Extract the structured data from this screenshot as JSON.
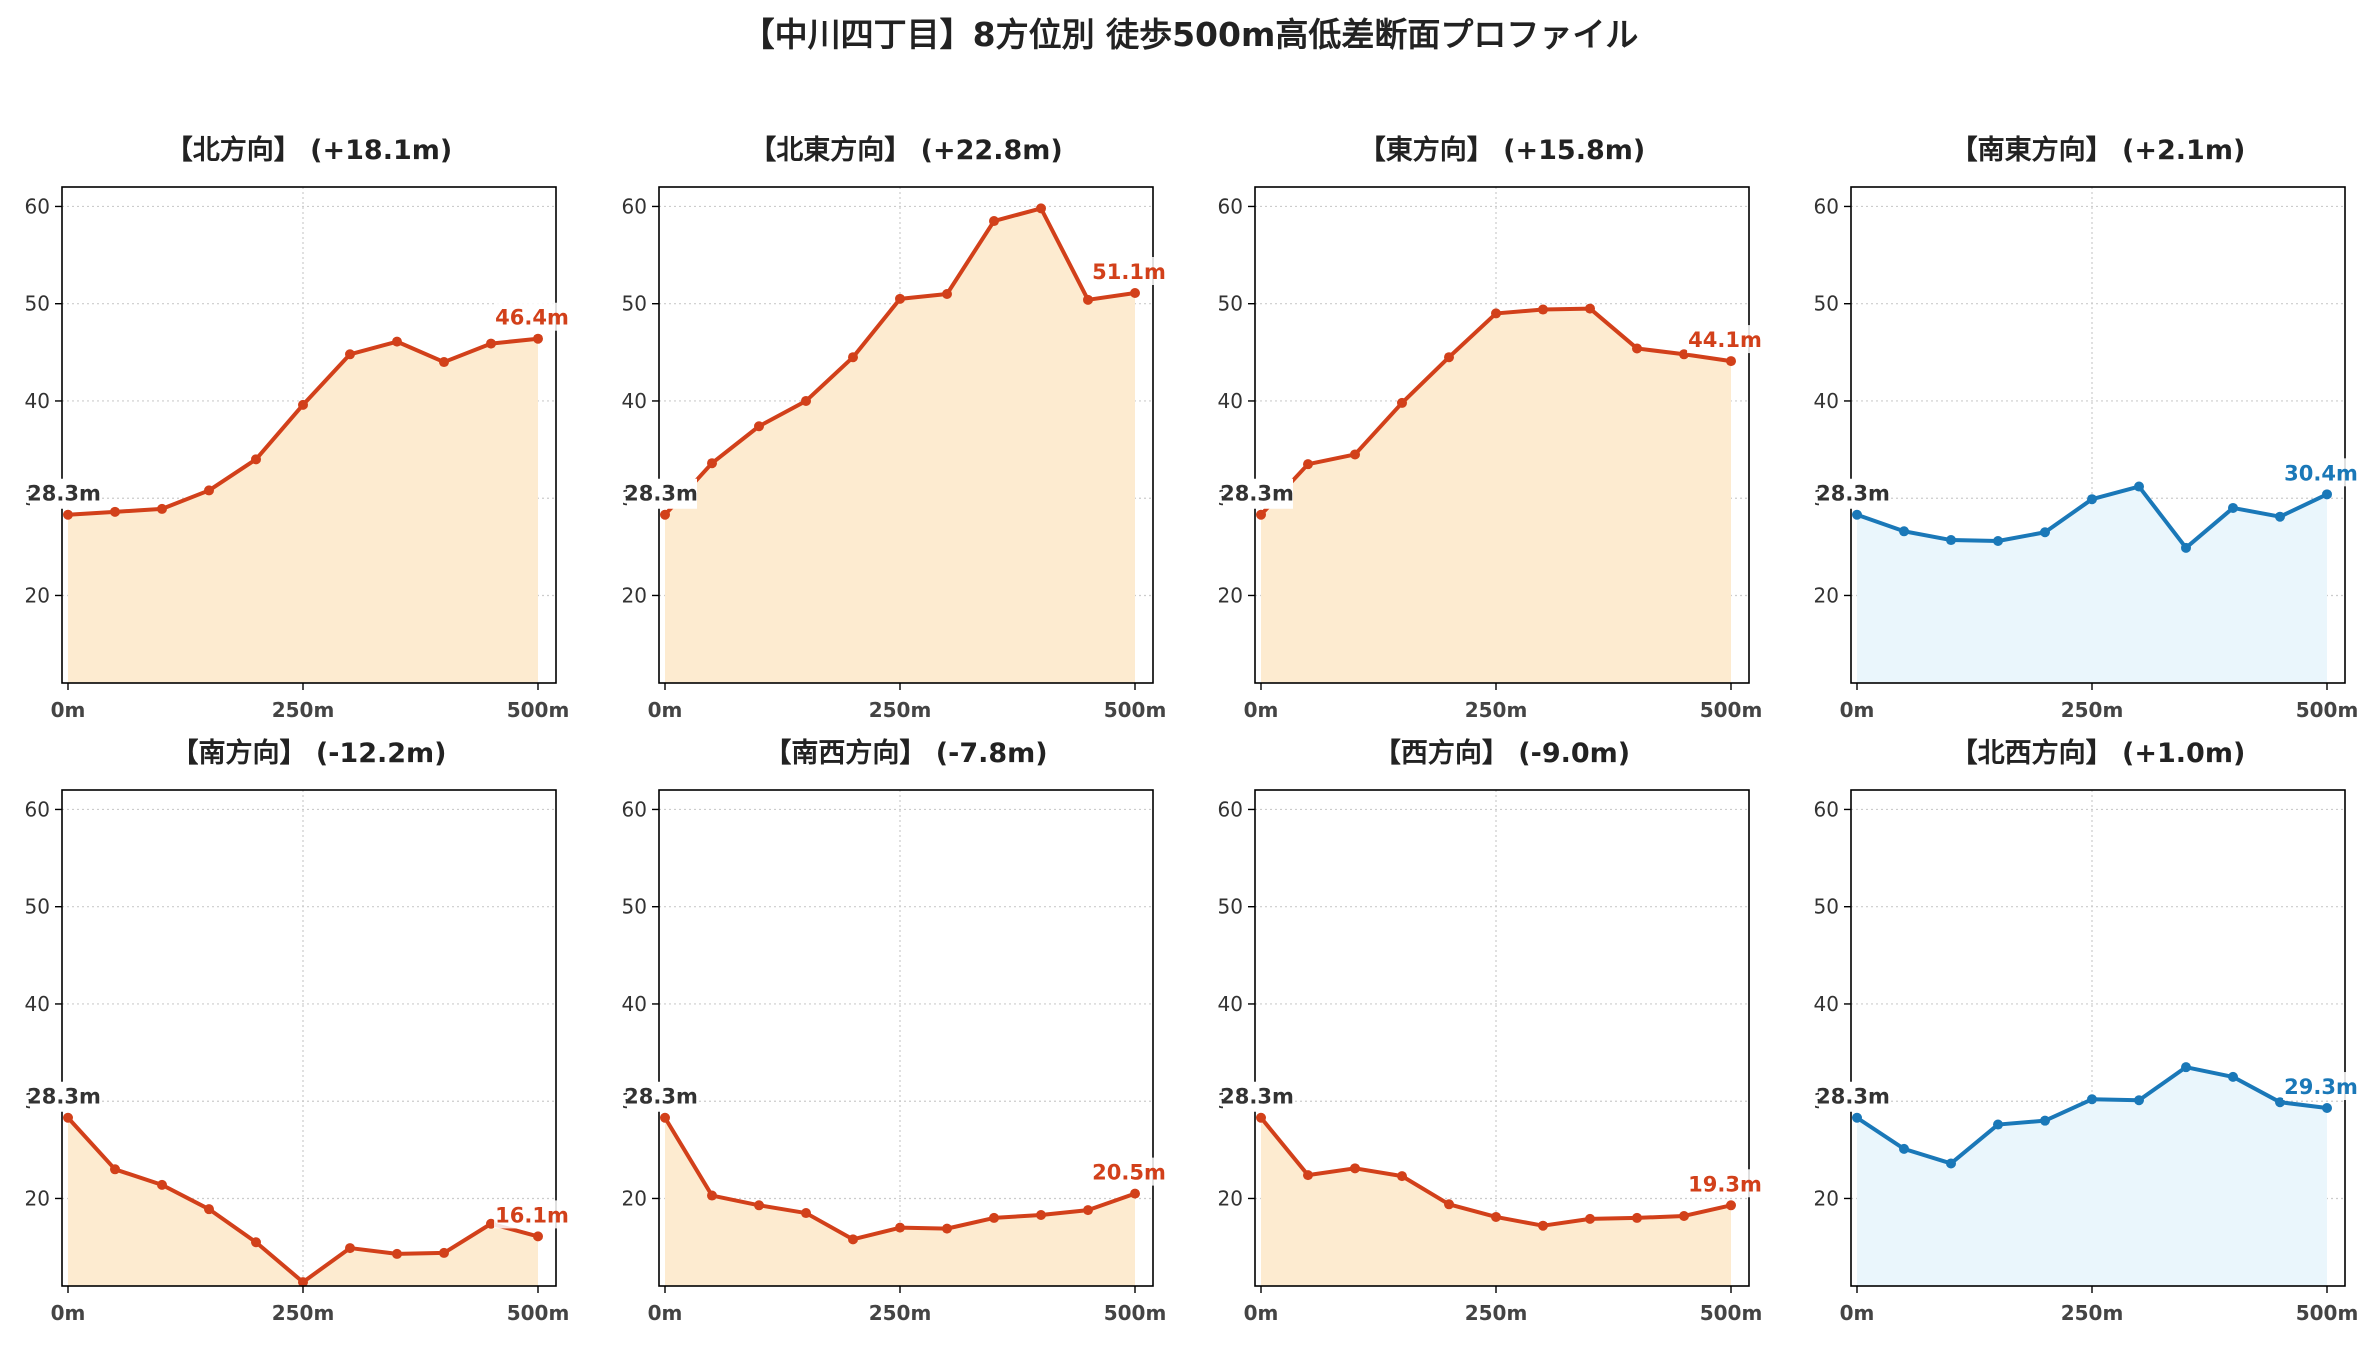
{
  "title": "【中川四丁目】8方位別 徒歩500m高低差断面プロファイル",
  "colors": {
    "up_line": "#d2401a",
    "up_fill": "#fdebd0",
    "flat_line": "#1a78b8",
    "flat_fill": "#eaf6fc",
    "start_label": "#333333"
  },
  "chart_data": [
    {
      "type": "area",
      "title": "【北方向】 (+18.1m)",
      "color": "up",
      "x": [
        0,
        50,
        100,
        150,
        200,
        250,
        300,
        350,
        400,
        450,
        500
      ],
      "values": [
        28.3,
        28.6,
        28.9,
        30.8,
        34.0,
        39.6,
        44.8,
        46.1,
        44.0,
        45.9,
        46.4
      ],
      "start_label": "28.3m",
      "end_label": "46.4m",
      "ylim": [
        11,
        62
      ],
      "yticks": [
        "20",
        "30",
        "40",
        "50",
        "60"
      ],
      "xticks": [
        "0m",
        "250m",
        "500m"
      ],
      "grid": true
    },
    {
      "type": "area",
      "title": "【北東方向】 (+22.8m)",
      "color": "up",
      "x": [
        0,
        50,
        100,
        150,
        200,
        250,
        300,
        350,
        400,
        450,
        500
      ],
      "values": [
        28.3,
        33.6,
        37.4,
        40.0,
        44.5,
        50.5,
        51.0,
        58.5,
        59.8,
        50.4,
        51.1
      ],
      "start_label": "28.3m",
      "end_label": "51.1m",
      "ylim": [
        11,
        62
      ],
      "yticks": [
        "20",
        "30",
        "40",
        "50",
        "60"
      ],
      "xticks": [
        "0m",
        "250m",
        "500m"
      ],
      "grid": true
    },
    {
      "type": "area",
      "title": "【東方向】 (+15.8m)",
      "color": "up",
      "x": [
        0,
        50,
        100,
        150,
        200,
        250,
        300,
        350,
        400,
        450,
        500
      ],
      "values": [
        28.3,
        33.5,
        34.5,
        39.8,
        44.5,
        49.0,
        49.4,
        49.5,
        45.4,
        44.8,
        44.1
      ],
      "start_label": "28.3m",
      "end_label": "44.1m",
      "ylim": [
        11,
        62
      ],
      "yticks": [
        "20",
        "30",
        "40",
        "50",
        "60"
      ],
      "xticks": [
        "0m",
        "250m",
        "500m"
      ],
      "grid": true
    },
    {
      "type": "area",
      "title": "【南東方向】 (+2.1m)",
      "color": "flat",
      "x": [
        0,
        50,
        100,
        150,
        200,
        250,
        300,
        350,
        400,
        450,
        500
      ],
      "values": [
        28.3,
        26.6,
        25.7,
        25.6,
        26.5,
        29.9,
        31.2,
        24.9,
        29.0,
        28.1,
        30.4
      ],
      "start_label": "28.3m",
      "end_label": "30.4m",
      "ylim": [
        11,
        62
      ],
      "yticks": [
        "20",
        "30",
        "40",
        "50",
        "60"
      ],
      "xticks": [
        "0m",
        "250m",
        "500m"
      ],
      "grid": true
    },
    {
      "type": "area",
      "title": "【南方向】 (-12.2m)",
      "color": "up",
      "x": [
        0,
        50,
        100,
        150,
        200,
        250,
        300,
        350,
        400,
        450,
        500
      ],
      "values": [
        28.3,
        23.0,
        21.4,
        18.9,
        15.5,
        11.4,
        14.9,
        14.3,
        14.4,
        17.4,
        16.1
      ],
      "start_label": "28.3m",
      "end_label": "16.1m",
      "ylim": [
        11,
        62
      ],
      "yticks": [
        "20",
        "30",
        "40",
        "50",
        "60"
      ],
      "xticks": [
        "0m",
        "250m",
        "500m"
      ],
      "grid": true
    },
    {
      "type": "area",
      "title": "【南西方向】 (-7.8m)",
      "color": "up",
      "x": [
        0,
        50,
        100,
        150,
        200,
        250,
        300,
        350,
        400,
        450,
        500
      ],
      "values": [
        28.3,
        20.3,
        19.3,
        18.5,
        15.8,
        17.0,
        16.9,
        18.0,
        18.3,
        18.8,
        20.5
      ],
      "start_label": "28.3m",
      "end_label": "20.5m",
      "ylim": [
        11,
        62
      ],
      "yticks": [
        "20",
        "30",
        "40",
        "50",
        "60"
      ],
      "xticks": [
        "0m",
        "250m",
        "500m"
      ],
      "grid": true
    },
    {
      "type": "area",
      "title": "【西方向】 (-9.0m)",
      "color": "up",
      "x": [
        0,
        50,
        100,
        150,
        200,
        250,
        300,
        350,
        400,
        450,
        500
      ],
      "values": [
        28.3,
        22.4,
        23.1,
        22.3,
        19.4,
        18.1,
        17.2,
        17.9,
        18.0,
        18.2,
        19.3
      ],
      "start_label": "28.3m",
      "end_label": "19.3m",
      "ylim": [
        11,
        62
      ],
      "yticks": [
        "20",
        "30",
        "40",
        "50",
        "60"
      ],
      "xticks": [
        "0m",
        "250m",
        "500m"
      ],
      "grid": true
    },
    {
      "type": "area",
      "title": "【北西方向】 (+1.0m)",
      "color": "flat",
      "x": [
        0,
        50,
        100,
        150,
        200,
        250,
        300,
        350,
        400,
        450,
        500
      ],
      "values": [
        28.3,
        25.1,
        23.6,
        27.6,
        28.0,
        30.2,
        30.1,
        33.5,
        32.5,
        29.9,
        29.3
      ],
      "start_label": "28.3m",
      "end_label": "29.3m",
      "ylim": [
        11,
        62
      ],
      "yticks": [
        "20",
        "30",
        "40",
        "50",
        "60"
      ],
      "xticks": [
        "0m",
        "250m",
        "500m"
      ],
      "grid": true
    }
  ]
}
